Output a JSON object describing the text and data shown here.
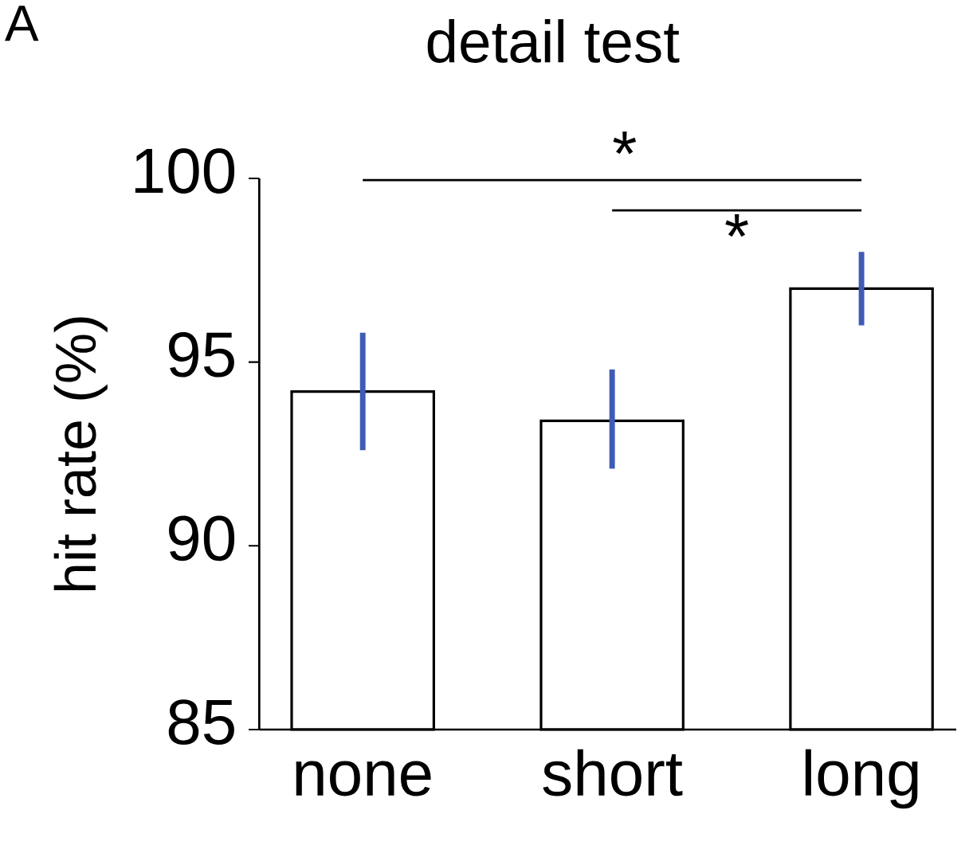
{
  "chart_data": {
    "type": "bar",
    "title": "detail test",
    "ylabel": "hit rate (%)",
    "categories": [
      "none",
      "short",
      "long"
    ],
    "values": [
      94.2,
      93.4,
      97.0
    ],
    "errors": [
      [
        92.6,
        95.8
      ],
      [
        92.1,
        94.8
      ],
      [
        96.0,
        98.0
      ]
    ],
    "color": "#ffffff",
    "ylim": [
      85,
      100
    ],
    "yticks": [
      85,
      90,
      95,
      100
    ],
    "grid": false,
    "annotations": [
      "A",
      "*",
      "*"
    ]
  }
}
